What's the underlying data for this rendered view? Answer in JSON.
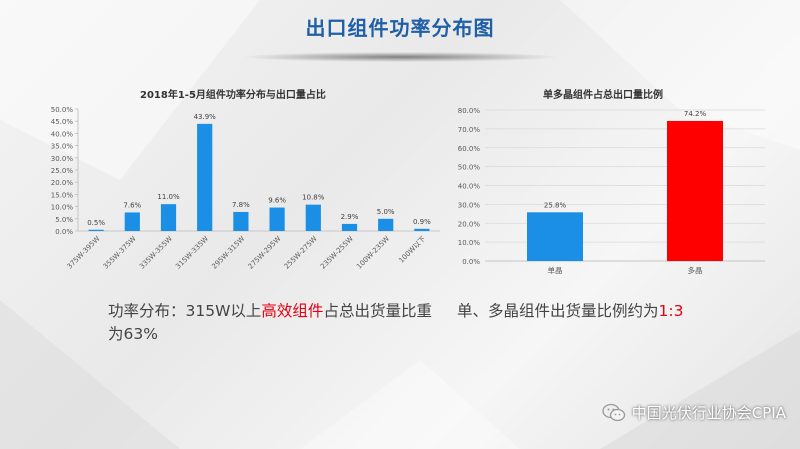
{
  "page_title": "出口组件功率分布图",
  "left_chart_title": "2018年1-5月组件功率分布与出口量占比",
  "right_chart_title": "单多晶组件占总出口量比例",
  "left_caption": {
    "part1": "功率分布：315W以上",
    "highlight": "高效组件",
    "part2": "占总出货量比重为63%"
  },
  "right_caption": {
    "part1": "单、多晶组件出货量比例约为",
    "highlight": "1:3"
  },
  "footer_text": "中国光伏行业协会CPIA",
  "colors": {
    "title": "#1f5fa8",
    "bar_blue": "#1b8fe6",
    "bar_red": "#ff0000",
    "highlight": "#e60012"
  },
  "chart_data": [
    {
      "type": "bar",
      "title": "2018年1-5月组件功率分布与出口量占比",
      "categories": [
        "375W-395W",
        "355W-375W",
        "335W-355W",
        "315W-335W",
        "295W-315W",
        "275W-295W",
        "255W-275W",
        "235W-255W",
        "100W-235W",
        "100W以下"
      ],
      "values": [
        0.5,
        7.6,
        11.0,
        43.9,
        7.8,
        9.6,
        10.8,
        2.9,
        5.0,
        0.9
      ],
      "data_labels": [
        "0.5%",
        "7.6%",
        "11.0%",
        "43.9%",
        "7.8%",
        "9.6%",
        "10.8%",
        "2.9%",
        "5.0%",
        "0.9%"
      ],
      "ylim": [
        0,
        50
      ],
      "yticks": [
        "0.0%",
        "5.0%",
        "10.0%",
        "15.0%",
        "20.0%",
        "25.0%",
        "30.0%",
        "35.0%",
        "40.0%",
        "45.0%",
        "50.0%"
      ],
      "grid": false,
      "color": "#1b8fe6"
    },
    {
      "type": "bar",
      "title": "单多晶组件占总出口量比例",
      "categories": [
        "单晶",
        "多晶"
      ],
      "values": [
        25.8,
        74.2
      ],
      "data_labels": [
        "25.8%",
        "74.2%"
      ],
      "ylim": [
        0,
        80
      ],
      "yticks": [
        "0.0%",
        "10.0%",
        "20.0%",
        "30.0%",
        "40.0%",
        "50.0%",
        "60.0%",
        "70.0%",
        "80.0%"
      ],
      "grid": true,
      "colors": [
        "#1b8fe6",
        "#ff0000"
      ]
    }
  ]
}
